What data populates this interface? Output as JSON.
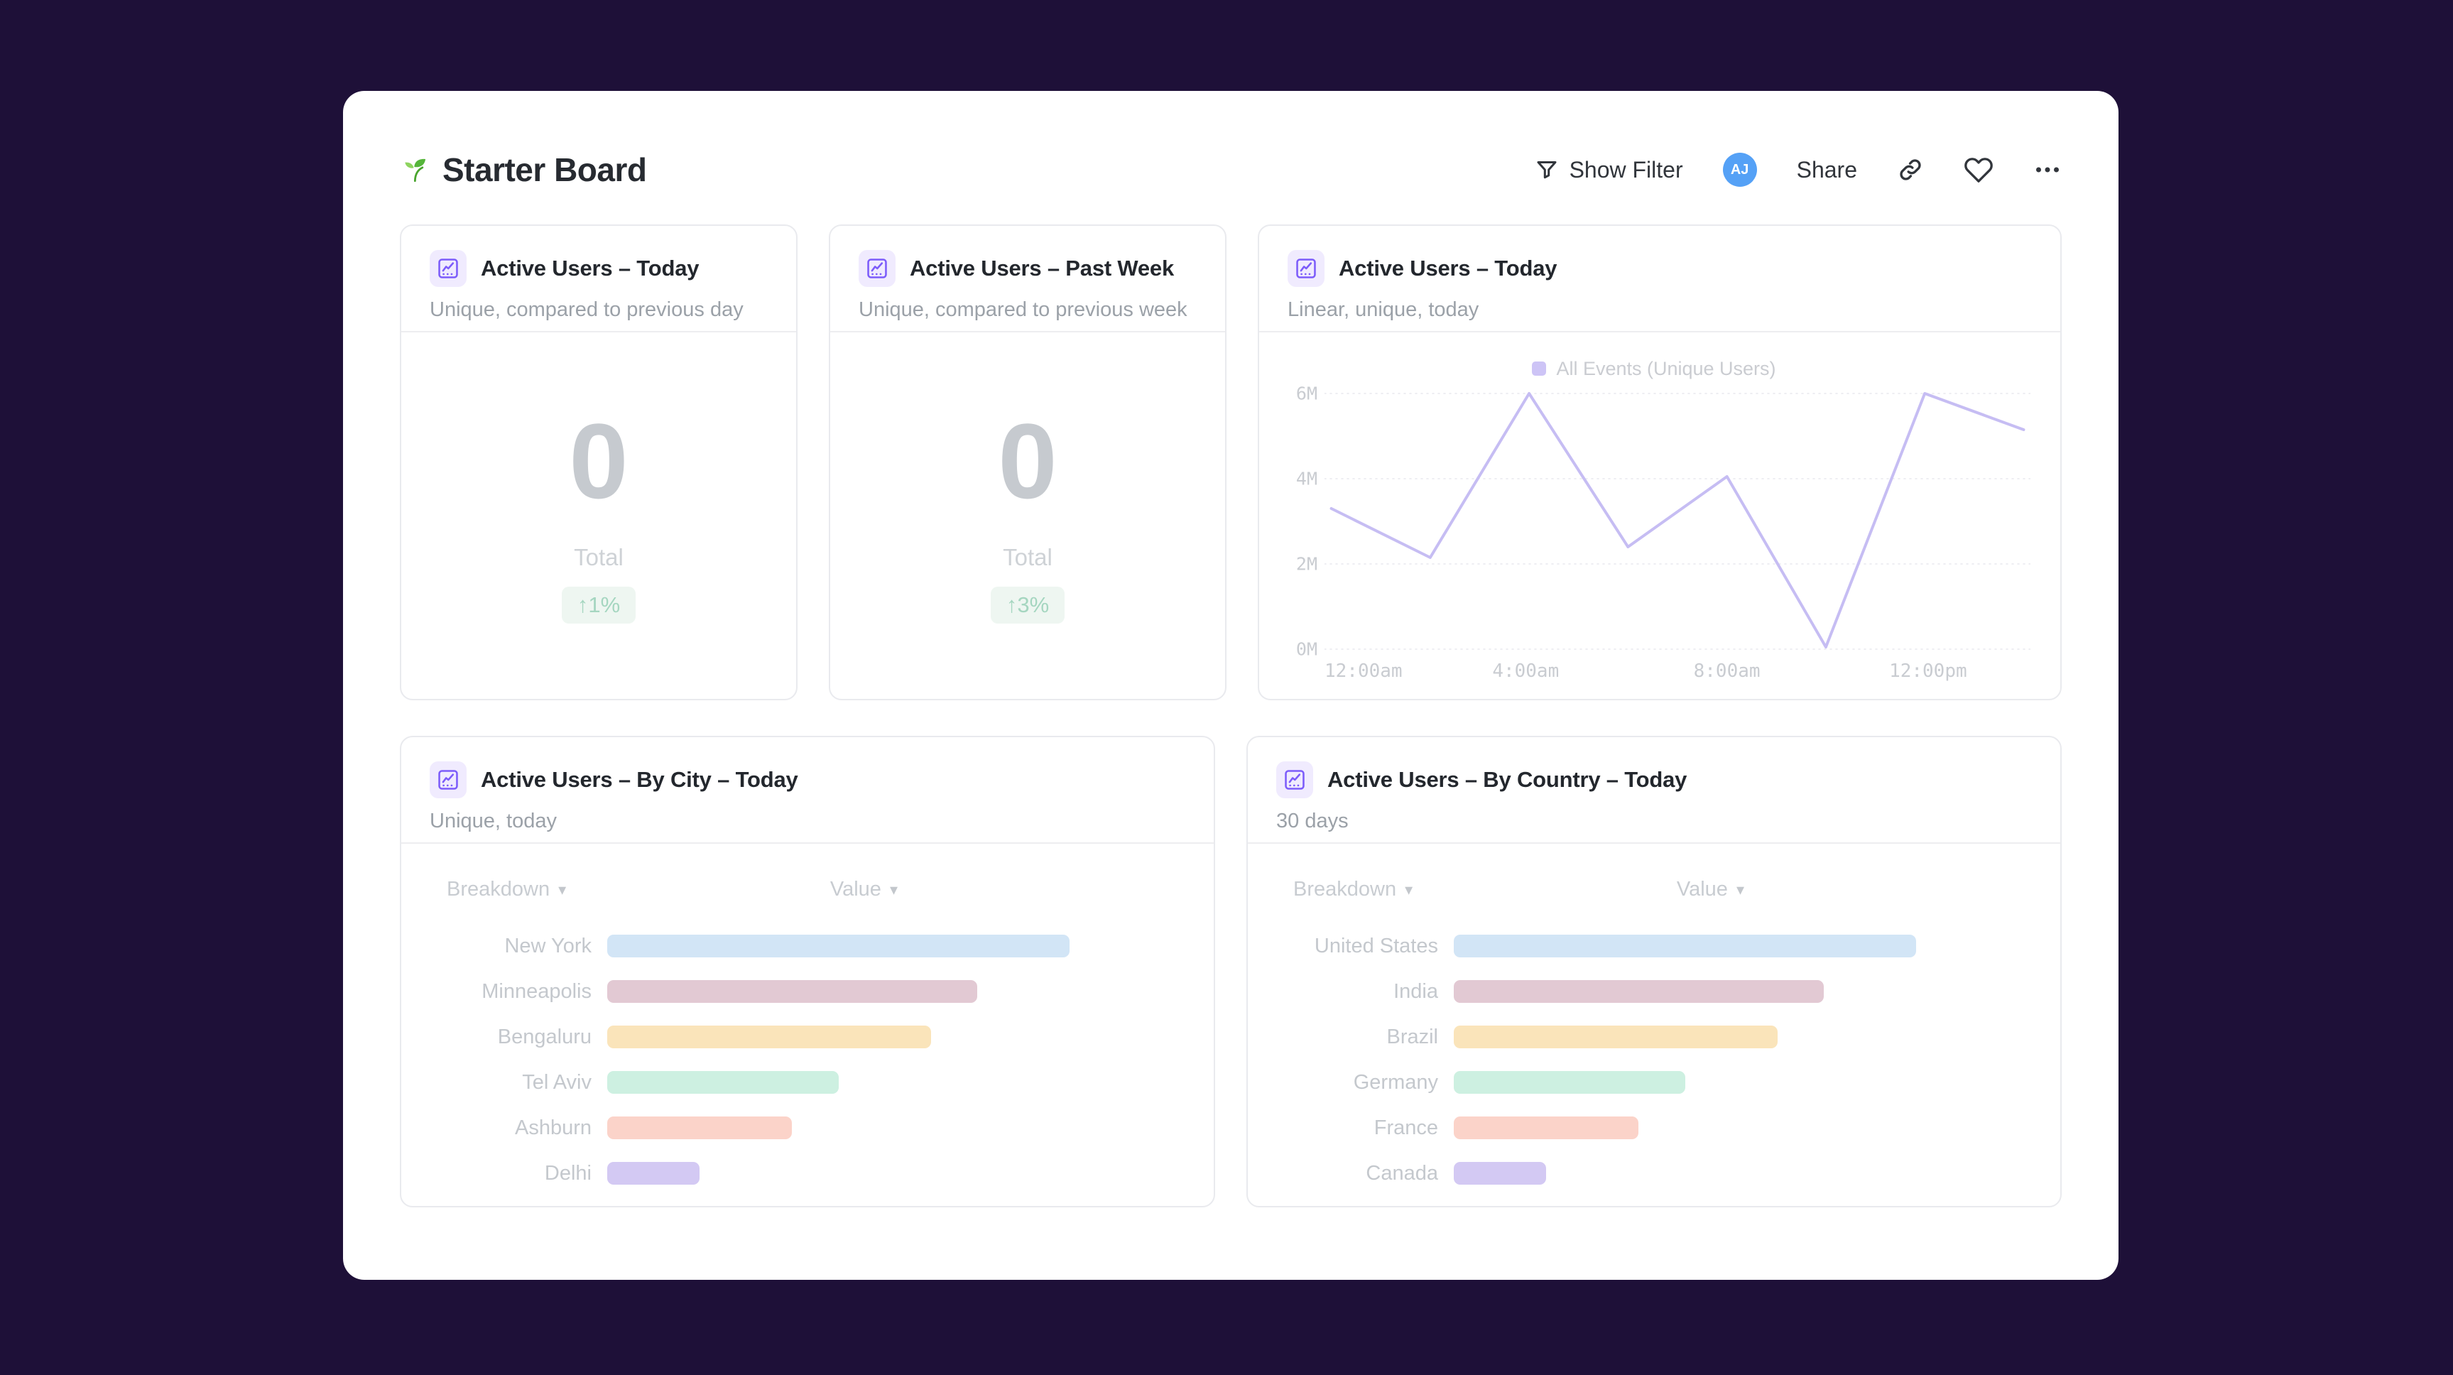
{
  "page": {
    "background": "#1e1038",
    "panel_background": "#ffffff"
  },
  "header": {
    "title": "Starter Board",
    "board_icon": "seedling",
    "actions": {
      "show_filter_label": "Show Filter",
      "avatar_initials": "AJ",
      "avatar_color": "#55a1f6",
      "share_label": "Share"
    }
  },
  "icons": {
    "dropdown_arrow": "▾",
    "filter": "funnel",
    "link": "chain-link",
    "favorite": "heart-outline",
    "more": "three-dots",
    "card_chart": "line-chart-in-square"
  },
  "cards": {
    "today": {
      "title": "Active Users – Today",
      "subtitle": "Unique, compared to previous day",
      "value": "0",
      "value_label": "Total",
      "change": "↑1%",
      "change_color": "#a5d6c0"
    },
    "past_week": {
      "title": "Active Users – Past Week",
      "subtitle": "Unique, compared to previous week",
      "value": "0",
      "value_label": "Total",
      "change": "↑3%",
      "change_color": "#a5d6c0"
    },
    "today_chart": {
      "title": "Active Users – Today",
      "subtitle": "Linear, unique, today",
      "legend": "All Events (Unique Users)"
    },
    "by_city": {
      "title": "Active Users – By City – Today",
      "subtitle": "Unique, today",
      "columns": {
        "breakdown": "Breakdown",
        "value": "Value"
      },
      "rows": [
        {
          "label": "New York",
          "pct": 100,
          "color": "#d2e5f6"
        },
        {
          "label": "Minneapolis",
          "pct": 80,
          "color": "#e2c9d3"
        },
        {
          "label": "Bengaluru",
          "pct": 70,
          "color": "#fae4ba"
        },
        {
          "label": "Tel Aviv",
          "pct": 50,
          "color": "#cdf0e1"
        },
        {
          "label": "Ashburn",
          "pct": 40,
          "color": "#fbd3c9"
        },
        {
          "label": "Delhi",
          "pct": 20,
          "color": "#d3c9f3"
        }
      ]
    },
    "by_country": {
      "title": "Active Users – By Country – Today",
      "subtitle": "30 days",
      "columns": {
        "breakdown": "Breakdown",
        "value": "Value"
      },
      "rows": [
        {
          "label": "United States",
          "pct": 100,
          "color": "#d2e5f6"
        },
        {
          "label": "India",
          "pct": 80,
          "color": "#e2c9d3"
        },
        {
          "label": "Brazil",
          "pct": 70,
          "color": "#fae4ba"
        },
        {
          "label": "Germany",
          "pct": 50,
          "color": "#cdf0e1"
        },
        {
          "label": "France",
          "pct": 40,
          "color": "#fbd3c9"
        },
        {
          "label": "Canada",
          "pct": 20,
          "color": "#d3c9f3"
        }
      ]
    }
  },
  "chart_data": {
    "type": "line",
    "title": "Active Users – Today",
    "subtitle": "Linear, unique, today",
    "x_points": [
      "12:00am",
      "2:00am",
      "4:00am",
      "6:00am",
      "8:00am",
      "10:00am",
      "12:00pm",
      "2:00pm"
    ],
    "series": [
      {
        "name": "All Events (Unique Users)",
        "values_millions": [
          3.3,
          2.15,
          6.0,
          2.4,
          4.05,
          0.05,
          6.0,
          5.15
        ]
      }
    ],
    "x_tick_labels": [
      "12:00am",
      "4:00am",
      "8:00am",
      "12:00pm"
    ],
    "y_ticks": [
      {
        "label": "0M",
        "value": 0
      },
      {
        "label": "2M",
        "value": 2
      },
      {
        "label": "4M",
        "value": 4
      },
      {
        "label": "6M",
        "value": 6
      }
    ],
    "ylim_millions": [
      0,
      6
    ],
    "grid": "horizontal-dotted",
    "legend_position": "top-center",
    "line_color": "#c6bdf3",
    "legend_swatch_color": "#cdc4f6",
    "gridline_color": "#e8e8ee"
  }
}
